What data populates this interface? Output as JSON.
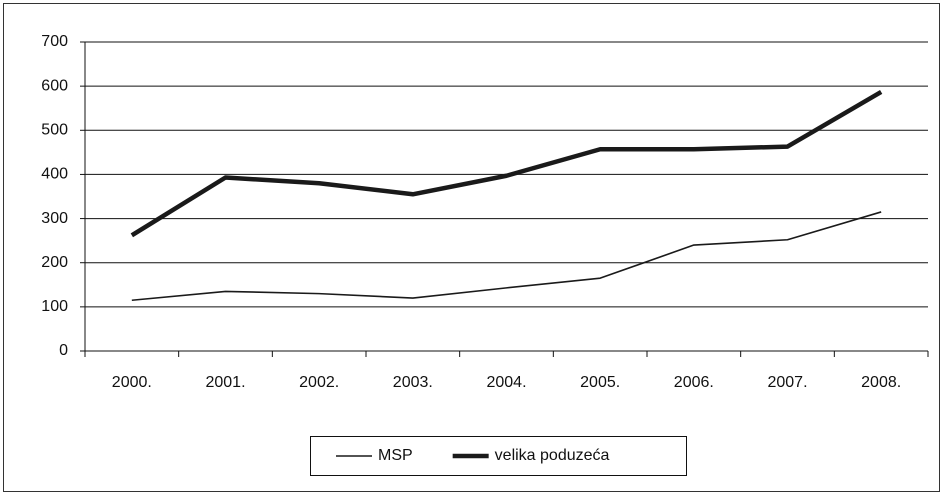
{
  "chart_data": {
    "type": "line",
    "categories": [
      "2000.",
      "2001.",
      "2002.",
      "2003.",
      "2004.",
      "2005.",
      "2006.",
      "2007.",
      "2008."
    ],
    "series": [
      {
        "name": "MSP",
        "color": "#1a1a1a",
        "values": [
          115,
          135,
          130,
          120,
          143,
          165,
          240,
          252,
          315
        ]
      },
      {
        "name": "velika poduzeća",
        "color": "#1a1a1a",
        "values": [
          262,
          393,
          380,
          355,
          397,
          457,
          457,
          463,
          587
        ]
      }
    ],
    "ylim": [
      0,
      700
    ],
    "yticks": [
      0,
      100,
      200,
      300,
      400,
      500,
      600,
      700
    ],
    "grid": true,
    "legend": "bottom"
  }
}
